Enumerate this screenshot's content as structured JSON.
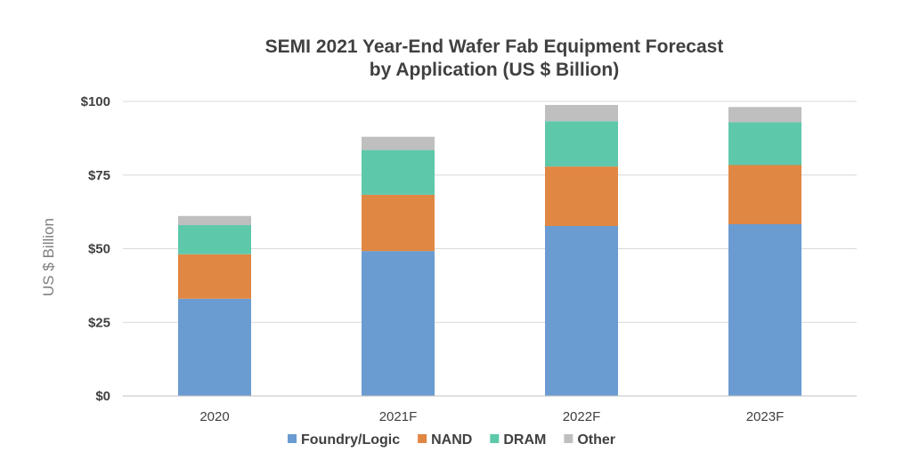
{
  "chart_data": {
    "type": "bar",
    "stacked": true,
    "title_lines": [
      "SEMI 2021 Year-End Wafer Fab Equipment Forecast",
      "by Application (US $ Billion)"
    ],
    "categories": [
      "2020",
      "2021F",
      "2022F",
      "2023F"
    ],
    "series": [
      {
        "name": "Foundry/Logic",
        "color": "#6a9bd1",
        "values": [
          33,
          49.2,
          57.7,
          58.3
        ]
      },
      {
        "name": "NAND",
        "color": "#e08743",
        "values": [
          15.1,
          19.1,
          20.2,
          20.1
        ]
      },
      {
        "name": "DRAM",
        "color": "#5ec8ab",
        "values": [
          9.9,
          15.2,
          15.4,
          14.5
        ]
      },
      {
        "name": "Other",
        "color": "#bfbfbf",
        "values": [
          3.1,
          4.5,
          5.5,
          5.2
        ]
      }
    ],
    "ylabel": "US $ Billion",
    "xlabel": "",
    "ylim": [
      0,
      100
    ],
    "yticks": [
      0,
      25,
      50,
      75,
      100
    ],
    "ytick_labels": [
      "$0",
      "$25",
      "$50",
      "$75",
      "$100"
    ],
    "grid": true,
    "legend_position": "bottom"
  }
}
